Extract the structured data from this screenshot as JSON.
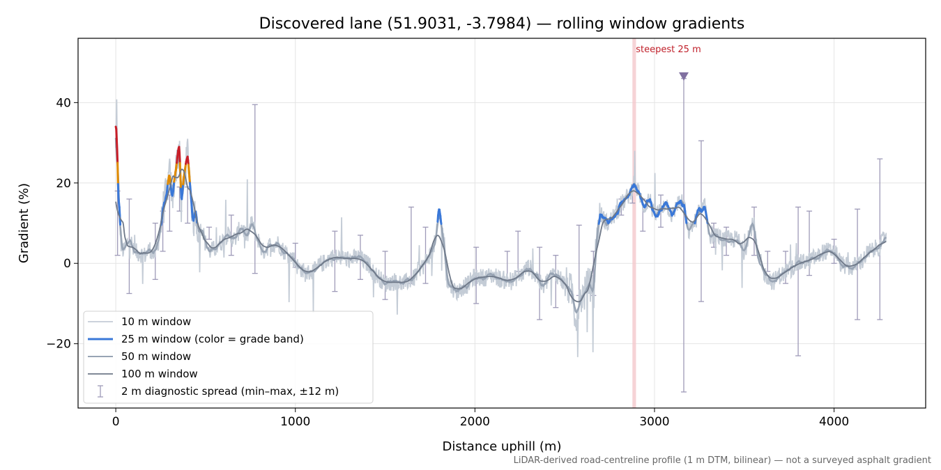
{
  "footnote": "LiDAR-derived road-centreline profile (1 m DTM, bilinear) — not a surveyed asphalt gradient",
  "chart_data": {
    "type": "line",
    "title": "Discovered lane (51.9031, -3.7984) — rolling window gradients",
    "xlabel": "Distance uphill (m)",
    "ylabel": "Gradient (%)",
    "xlim": [
      -210,
      4510
    ],
    "ylim": [
      -36,
      56
    ],
    "xticks": [
      0,
      1000,
      2000,
      3000,
      4000
    ],
    "xtick_labels": [
      "0",
      "1000",
      "2000",
      "3000",
      "4000"
    ],
    "yticks": [
      -20,
      0,
      20,
      40
    ],
    "ytick_labels": [
      "−20",
      "0",
      "20",
      "40"
    ],
    "grid": true,
    "legend_position": "lower-left",
    "colors": {
      "w10": "#c4ccd6",
      "w25_default": "#3a78d8",
      "w25_orange": "#e08a00",
      "w25_red": "#c81e28",
      "w50": "#98a4b4",
      "w100": "#6e7888",
      "diag": "#9e9ab8",
      "marker": "#8070a0",
      "steep_band": "#f4c8cc",
      "steep_text": "#c0202a"
    },
    "grade_band_thresholds": {
      "orange": 20,
      "red": 25
    },
    "steepest_band": {
      "x": [
        2877,
        2897
      ],
      "label": "steepest 25 m"
    },
    "marker": {
      "x": 3163,
      "y": 46.5
    },
    "profile_anchors": [
      [
        0,
        28
      ],
      [
        5,
        40
      ],
      [
        12,
        16
      ],
      [
        20,
        14
      ],
      [
        30,
        4
      ],
      [
        45,
        3
      ],
      [
        60,
        5
      ],
      [
        80,
        6
      ],
      [
        100,
        3
      ],
      [
        130,
        2.5
      ],
      [
        160,
        2
      ],
      [
        190,
        3.5
      ],
      [
        210,
        2
      ],
      [
        230,
        4
      ],
      [
        250,
        9
      ],
      [
        265,
        14
      ],
      [
        280,
        17
      ],
      [
        300,
        22
      ],
      [
        315,
        16
      ],
      [
        330,
        22
      ],
      [
        345,
        27
      ],
      [
        355,
        30
      ],
      [
        365,
        13
      ],
      [
        375,
        20
      ],
      [
        390,
        24
      ],
      [
        400,
        28
      ],
      [
        415,
        19
      ],
      [
        430,
        10
      ],
      [
        445,
        13
      ],
      [
        460,
        7
      ],
      [
        480,
        9
      ],
      [
        500,
        5
      ],
      [
        520,
        3
      ],
      [
        550,
        3.5
      ],
      [
        580,
        5
      ],
      [
        620,
        7
      ],
      [
        660,
        6
      ],
      [
        700,
        9
      ],
      [
        730,
        7
      ],
      [
        760,
        10
      ],
      [
        790,
        6
      ],
      [
        820,
        3
      ],
      [
        860,
        4.5
      ],
      [
        900,
        5
      ],
      [
        940,
        3
      ],
      [
        980,
        1.5
      ],
      [
        1020,
        -1
      ],
      [
        1060,
        -2.5
      ],
      [
        1100,
        -2
      ],
      [
        1150,
        0
      ],
      [
        1200,
        1.5
      ],
      [
        1250,
        1.5
      ],
      [
        1300,
        1
      ],
      [
        1350,
        1.5
      ],
      [
        1400,
        0
      ],
      [
        1450,
        -3
      ],
      [
        1500,
        -5
      ],
      [
        1550,
        -4.5
      ],
      [
        1600,
        -5
      ],
      [
        1650,
        -4
      ],
      [
        1700,
        -1
      ],
      [
        1750,
        2
      ],
      [
        1780,
        5
      ],
      [
        1800,
        13
      ],
      [
        1820,
        8
      ],
      [
        1850,
        -5
      ],
      [
        1900,
        -7
      ],
      [
        1950,
        -5.5
      ],
      [
        2000,
        -3.5
      ],
      [
        2050,
        -3.5
      ],
      [
        2100,
        -3
      ],
      [
        2150,
        -4
      ],
      [
        2200,
        -4.5
      ],
      [
        2250,
        -3
      ],
      [
        2300,
        -1
      ],
      [
        2340,
        -3
      ],
      [
        2380,
        -6
      ],
      [
        2420,
        -3
      ],
      [
        2460,
        -3
      ],
      [
        2500,
        -5
      ],
      [
        2540,
        -7
      ],
      [
        2560,
        -13
      ],
      [
        2600,
        -8
      ],
      [
        2640,
        -5
      ],
      [
        2660,
        -8
      ],
      [
        2680,
        8
      ],
      [
        2700,
        12
      ],
      [
        2740,
        10
      ],
      [
        2780,
        12
      ],
      [
        2820,
        15
      ],
      [
        2860,
        17
      ],
      [
        2885,
        20
      ],
      [
        2910,
        18
      ],
      [
        2940,
        14
      ],
      [
        2970,
        16
      ],
      [
        3000,
        12
      ],
      [
        3030,
        13
      ],
      [
        3060,
        15
      ],
      [
        3100,
        12
      ],
      [
        3130,
        15
      ],
      [
        3160,
        15
      ],
      [
        3190,
        8
      ],
      [
        3220,
        10
      ],
      [
        3250,
        13
      ],
      [
        3280,
        14
      ],
      [
        3310,
        7
      ],
      [
        3340,
        7
      ],
      [
        3380,
        6
      ],
      [
        3420,
        6
      ],
      [
        3460,
        6
      ],
      [
        3500,
        3
      ],
      [
        3530,
        8
      ],
      [
        3550,
        10
      ],
      [
        3580,
        1
      ],
      [
        3620,
        -3
      ],
      [
        3660,
        -4.5
      ],
      [
        3700,
        -3
      ],
      [
        3750,
        -1.5
      ],
      [
        3800,
        0
      ],
      [
        3850,
        0.5
      ],
      [
        3900,
        1.5
      ],
      [
        3950,
        3
      ],
      [
        4000,
        3
      ],
      [
        4050,
        -0.5
      ],
      [
        4100,
        -1
      ],
      [
        4150,
        0.5
      ],
      [
        4200,
        3
      ],
      [
        4250,
        4
      ],
      [
        4290,
        7
      ]
    ],
    "diagnostic_spread": [
      {
        "x": 10,
        "min": 2,
        "max": 18
      },
      {
        "x": 75,
        "min": -7.5,
        "max": 16
      },
      {
        "x": 220,
        "min": -4,
        "max": 10
      },
      {
        "x": 262,
        "min": 3,
        "max": 13
      },
      {
        "x": 300,
        "min": 8,
        "max": 17
      },
      {
        "x": 355,
        "min": 13,
        "max": 19
      },
      {
        "x": 400,
        "min": 10,
        "max": 19
      },
      {
        "x": 520,
        "min": 6,
        "max": 9
      },
      {
        "x": 643,
        "min": 2,
        "max": 12
      },
      {
        "x": 775,
        "min": -2.5,
        "max": 39.5
      },
      {
        "x": 1000,
        "min": -1,
        "max": 5
      },
      {
        "x": 1220,
        "min": -7,
        "max": 8
      },
      {
        "x": 1362,
        "min": -4,
        "max": 7
      },
      {
        "x": 1500,
        "min": -9,
        "max": 3
      },
      {
        "x": 1645,
        "min": -5,
        "max": 14
      },
      {
        "x": 1725,
        "min": -5,
        "max": 9
      },
      {
        "x": 2007,
        "min": -10,
        "max": 4
      },
      {
        "x": 2180,
        "min": -4,
        "max": 3
      },
      {
        "x": 2240,
        "min": -2,
        "max": 8
      },
      {
        "x": 2360,
        "min": -14,
        "max": 4
      },
      {
        "x": 2450,
        "min": -11,
        "max": 2
      },
      {
        "x": 2580,
        "min": -8,
        "max": 9.5
      },
      {
        "x": 2660,
        "min": -8,
        "max": 3
      },
      {
        "x": 2815,
        "min": 12,
        "max": 16
      },
      {
        "x": 2877,
        "min": 15,
        "max": 18
      },
      {
        "x": 2935,
        "min": 8,
        "max": 16
      },
      {
        "x": 3035,
        "min": 9,
        "max": 17
      },
      {
        "x": 3163,
        "min": -32,
        "max": 46
      },
      {
        "x": 3260,
        "min": -9.5,
        "max": 30.5
      },
      {
        "x": 3330,
        "min": 4,
        "max": 10
      },
      {
        "x": 3400,
        "min": 2,
        "max": 9
      },
      {
        "x": 3555,
        "min": 2,
        "max": 14
      },
      {
        "x": 3630,
        "min": -2,
        "max": 3
      },
      {
        "x": 3730,
        "min": -5,
        "max": 3
      },
      {
        "x": 3800,
        "min": -23,
        "max": 14
      },
      {
        "x": 3862,
        "min": -3,
        "max": 13
      },
      {
        "x": 4000,
        "min": 0,
        "max": 6
      },
      {
        "x": 4130,
        "min": -14,
        "max": 13.5
      },
      {
        "x": 4255,
        "min": -14,
        "max": 26
      }
    ],
    "series": [
      {
        "name": "10 m window",
        "color": "#c4ccd6"
      },
      {
        "name": "25 m window (color = grade band)",
        "color": "#3a78d8"
      },
      {
        "name": "50 m window",
        "color": "#98a4b4"
      },
      {
        "name": "100 m window",
        "color": "#6e7888"
      },
      {
        "name": "2 m diagnostic spread (min–max, ±12 m)",
        "color": "#9e9ab8"
      }
    ]
  }
}
